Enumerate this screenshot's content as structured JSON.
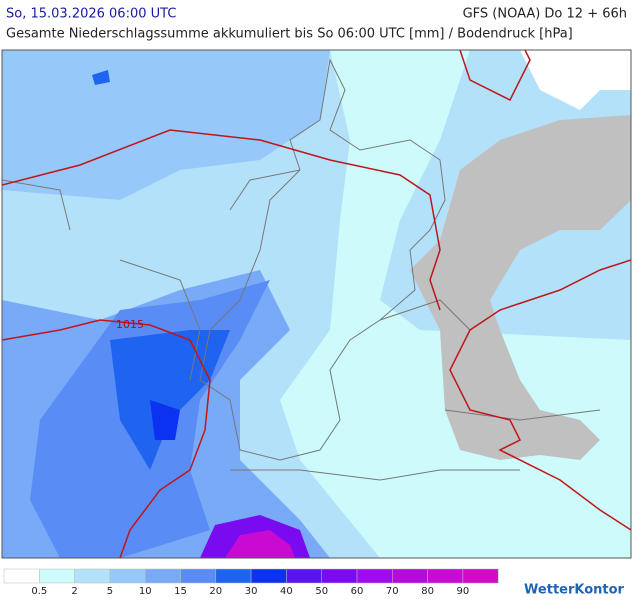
{
  "header": {
    "date": "So, 15.03.2026 06:00 UTC",
    "model": "GFS (NOAA) Do 12 + 66h",
    "subtitle": "Gesamte Niederschlagssumme akkumuliert bis So 06:00 UTC [mm] / Bodendruck [hPa]"
  },
  "map": {
    "isobar_label": "1015"
  },
  "legend": {
    "colors": [
      "#ffffff",
      "#cdfafa",
      "#b4e1fa",
      "#96c8fa",
      "#78aaf8",
      "#5a8cf5",
      "#1e64f0",
      "#0a32f0",
      "#5a14f0",
      "#7a0af0",
      "#a00af0",
      "#b40adc",
      "#c80ad2",
      "#d20ac8"
    ],
    "labels": [
      "0.5",
      "2",
      "5",
      "10",
      "15",
      "20",
      "30",
      "40",
      "50",
      "60",
      "70",
      "80",
      "90"
    ]
  },
  "brand": "WetterKontor"
}
